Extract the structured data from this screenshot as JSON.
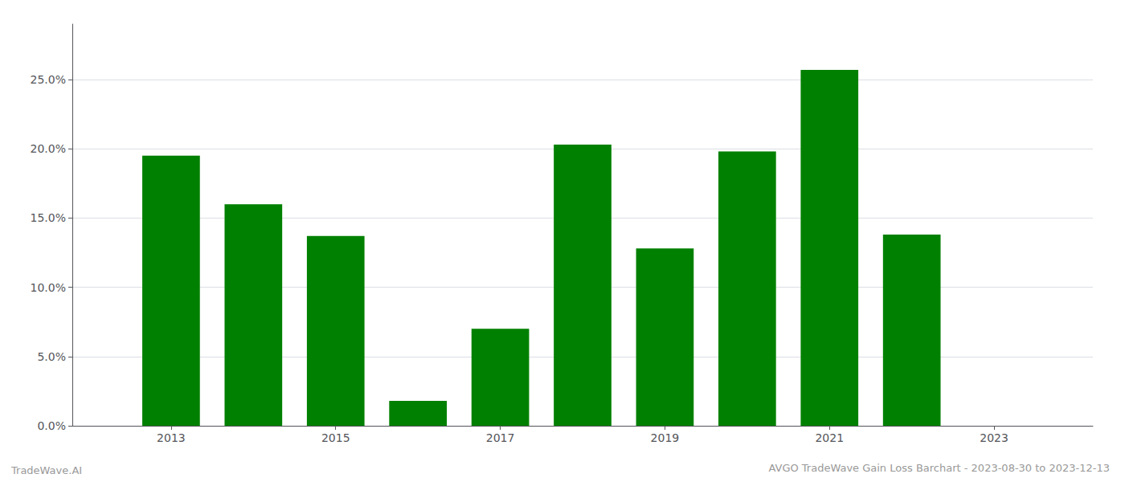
{
  "chart_data": {
    "type": "bar",
    "title": "AVGO TradeWave Gain Loss Barchart - 2023-08-30 to 2023-12-13",
    "annotations": [
      "TradeWave.AI"
    ],
    "x": [
      2013,
      2014,
      2015,
      2016,
      2017,
      2018,
      2019,
      2020,
      2021,
      2022,
      2023
    ],
    "values": [
      0.195,
      0.16,
      0.137,
      0.018,
      0.07,
      0.203,
      0.128,
      0.198,
      0.257,
      0.138,
      null
    ],
    "color": "#008000",
    "xlim": [
      2011.8,
      2024.2
    ],
    "xticks": [
      2013,
      2015,
      2017,
      2019,
      2021,
      2023
    ],
    "ylim": [
      0,
      0.29
    ],
    "yticks": [
      {
        "value": 0.0,
        "label": "0.0%"
      },
      {
        "value": 0.05,
        "label": "5.0%"
      },
      {
        "value": 0.1,
        "label": "10.0%"
      },
      {
        "value": 0.15,
        "label": "15.0%"
      },
      {
        "value": 0.2,
        "label": "20.0%"
      },
      {
        "value": 0.25,
        "label": "25.0%"
      }
    ],
    "grid": true
  }
}
